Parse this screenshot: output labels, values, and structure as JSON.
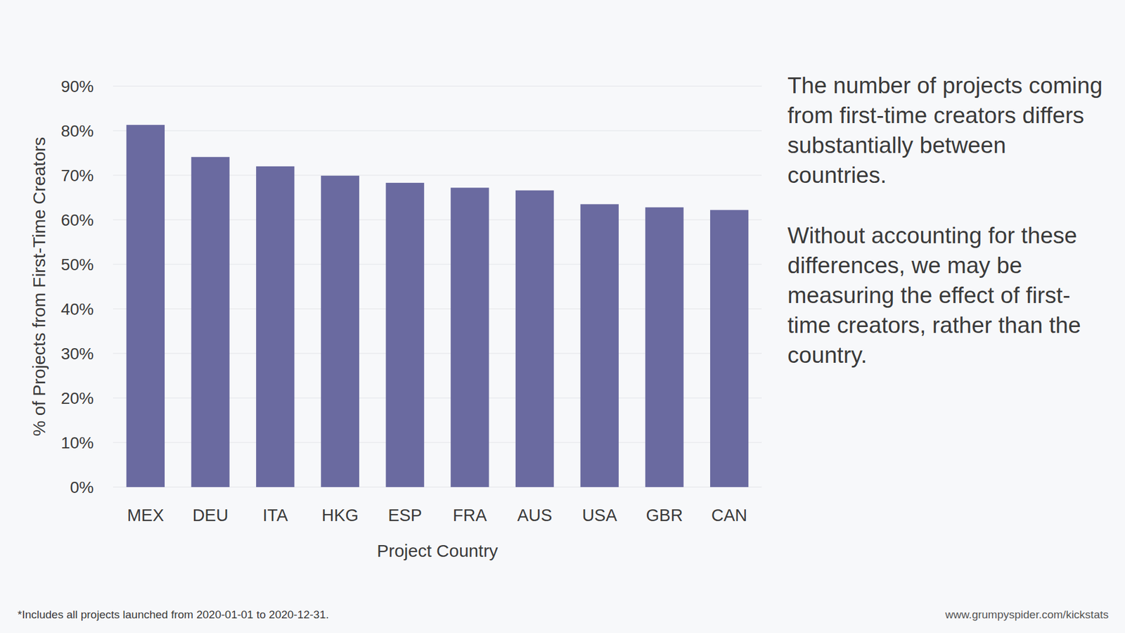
{
  "chart_data": {
    "type": "bar",
    "x_label": "Project Country",
    "y_label": "% of Projects from First-Time Creators",
    "categories": [
      "MEX",
      "DEU",
      "ITA",
      "HKG",
      "ESP",
      "FRA",
      "AUS",
      "USA",
      "GBR",
      "CAN"
    ],
    "values": [
      81.3,
      74.1,
      72.0,
      69.9,
      68.3,
      67.2,
      66.6,
      63.5,
      62.8,
      62.2
    ],
    "color": "#6a6aa0",
    "ylim": [
      0,
      90
    ],
    "yticks": [
      {
        "value": 0,
        "label": "0%"
      },
      {
        "value": 10,
        "label": "10%"
      },
      {
        "value": 20,
        "label": "20%"
      },
      {
        "value": 30,
        "label": "30%"
      },
      {
        "value": 40,
        "label": "40%"
      },
      {
        "value": 50,
        "label": "50%"
      },
      {
        "value": 60,
        "label": "60%"
      },
      {
        "value": 70,
        "label": "70%"
      },
      {
        "value": 80,
        "label": "80%"
      },
      {
        "value": 90,
        "label": "90%"
      }
    ],
    "grid": true,
    "annotations": [
      "The number of projects coming from first-time creators differs substantially between countries.",
      "Without accounting for these differences, we may be measuring the effect of first-time creators, rather than the country."
    ],
    "footnote": "*Includes all projects launched from 2020-01-01 to 2020-12-31.",
    "source": "www.grumpyspider.com/kickstats"
  }
}
